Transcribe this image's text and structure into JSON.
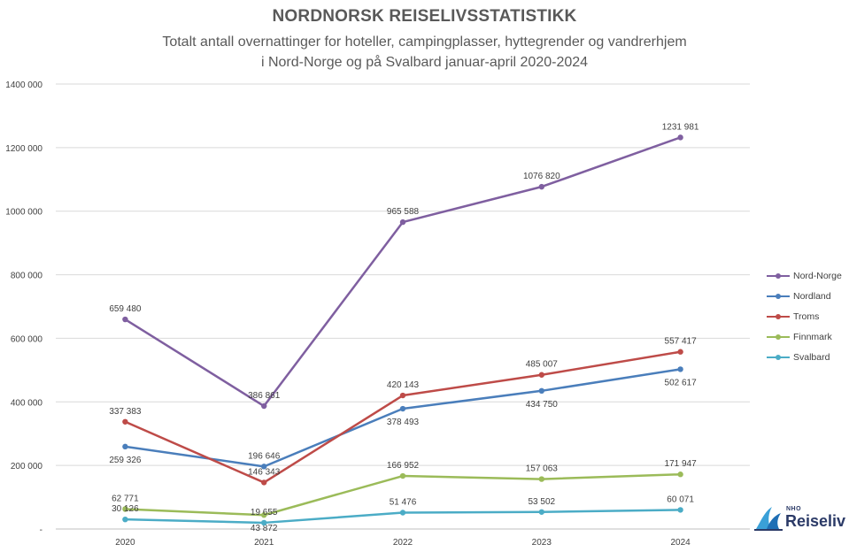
{
  "header": {
    "title": "NORDNORSK REISELIVSSTATISTIKK",
    "subtitle_line1": "Totalt antall overnattinger for hoteller, campingplasser, hyttegrender og vandrerhjem",
    "subtitle_line2": "i Nord-Norge og på Svalbard januar-april 2020-2024"
  },
  "chart_data": {
    "type": "line",
    "categories": [
      "2020",
      "2021",
      "2022",
      "2023",
      "2024"
    ],
    "ylim": [
      0,
      1400000
    ],
    "yticks": [
      0,
      200000,
      400000,
      600000,
      800000,
      1000000,
      1200000,
      1400000
    ],
    "ytick_labels": [
      "-",
      "200 000",
      "400 000",
      "600 000",
      "800 000",
      "1000 000",
      "1200 000",
      "1400 000"
    ],
    "grid": true,
    "legend_position": "right",
    "series": [
      {
        "name": "Nord-Norge",
        "color": "#7f5fa0",
        "values": [
          659480,
          386861,
          965588,
          1076820,
          1231981
        ],
        "labels": [
          "659 480",
          "386 861",
          "965 588",
          "1076 820",
          "1231 981"
        ]
      },
      {
        "name": "Nordland",
        "color": "#4a7ebb",
        "values": [
          259326,
          196646,
          378493,
          434750,
          502617
        ],
        "labels": [
          "259 326",
          "196 646",
          "378 493",
          "434 750",
          "502 617"
        ]
      },
      {
        "name": "Troms",
        "color": "#be4b48",
        "values": [
          337383,
          146343,
          420143,
          485007,
          557417
        ],
        "labels": [
          "337 383",
          "146 343",
          "420 143",
          "485 007",
          "557 417"
        ]
      },
      {
        "name": "Finnmark",
        "color": "#9bbb59",
        "values": [
          62771,
          43872,
          166952,
          157063,
          171947
        ],
        "labels": [
          "62 771",
          "43 872",
          "166 952",
          "157 063",
          "171 947"
        ]
      },
      {
        "name": "Svalbard",
        "color": "#4bacc6",
        "values": [
          30126,
          19655,
          51476,
          53502,
          60071
        ],
        "labels": [
          "30 126",
          "19 655",
          "51 476",
          "53 502",
          "60 071"
        ]
      }
    ]
  },
  "logo": {
    "small_text": "NHO",
    "big_text": "Reiseliv",
    "color": "#2b3a67",
    "accent": "#3aa0d8"
  }
}
